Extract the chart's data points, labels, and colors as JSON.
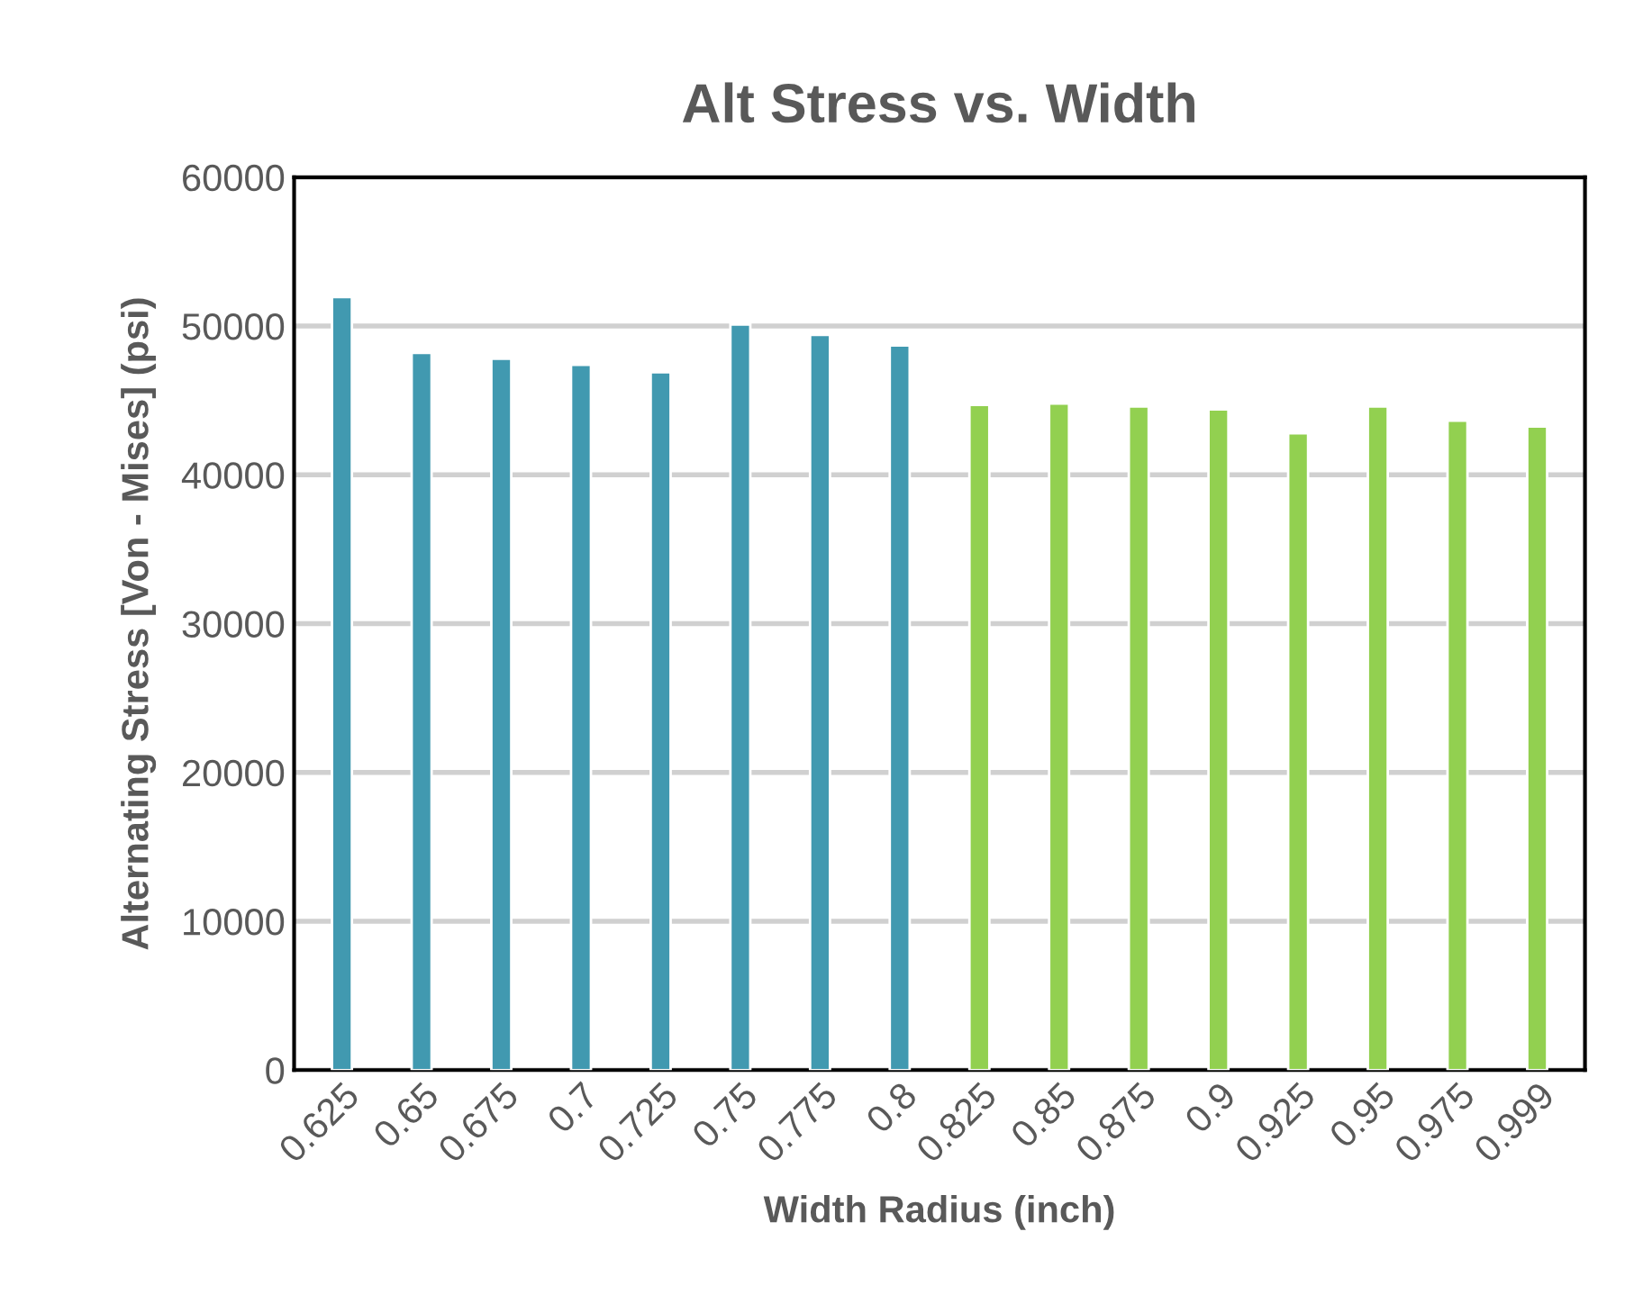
{
  "chart_data": {
    "type": "bar",
    "title": "Alt Stress vs. Width",
    "xlabel": "Width Radius (inch)",
    "ylabel": "Alternating Stress [Von - Mises] (psi)",
    "categories": [
      "0.625",
      "0.65",
      "0.675",
      "0.7",
      "0.725",
      "0.75",
      "0.775",
      "0.8",
      "0.825",
      "0.85",
      "0.875",
      "0.9",
      "0.925",
      "0.95",
      "0.975",
      "0.999"
    ],
    "values": [
      51950,
      48200,
      47800,
      47400,
      46900,
      50100,
      49400,
      48700,
      44700,
      44800,
      44600,
      44400,
      42800,
      44600,
      43650,
      43250
    ],
    "colors": [
      "#4199b0",
      "#4199b0",
      "#4199b0",
      "#4199b0",
      "#4199b0",
      "#4199b0",
      "#4199b0",
      "#4199b0",
      "#92d050",
      "#92d050",
      "#92d050",
      "#92d050",
      "#92d050",
      "#92d050",
      "#92d050",
      "#92d050"
    ],
    "ylim": [
      0,
      60000
    ],
    "yticks": [
      0,
      10000,
      20000,
      30000,
      40000,
      50000,
      60000
    ],
    "grid": "y"
  }
}
